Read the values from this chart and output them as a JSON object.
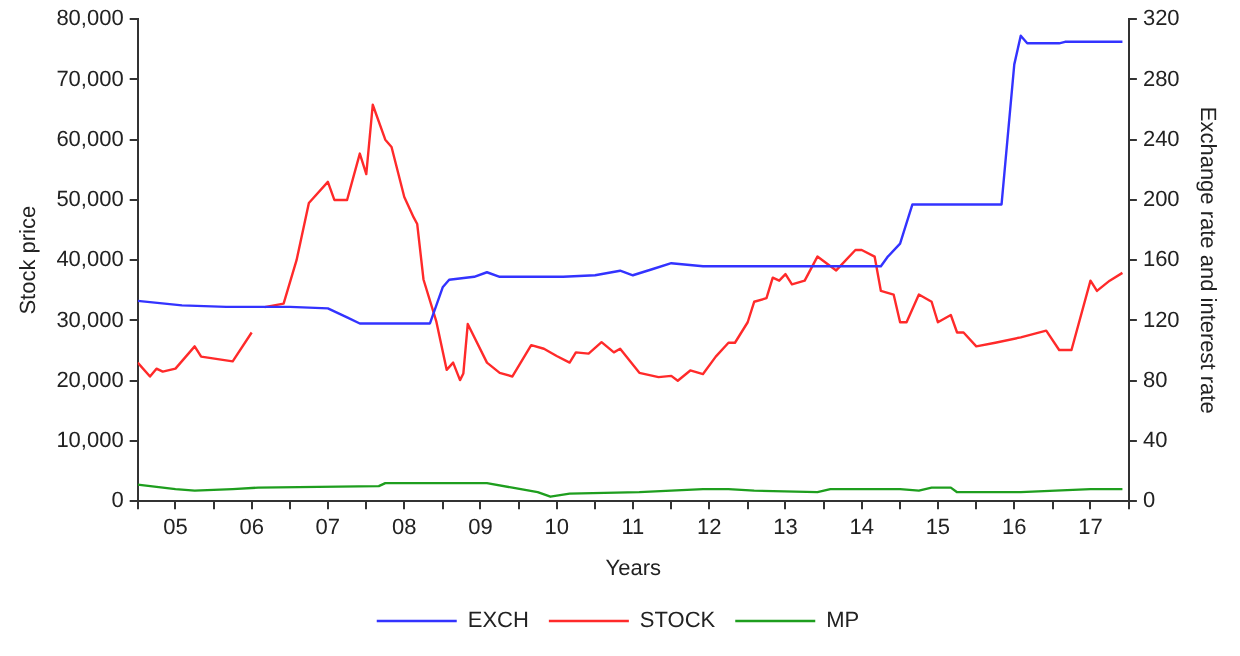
{
  "chart_data": {
    "type": "line",
    "xlabel": "Years",
    "ylabel": "Stock price",
    "y2label": "Exchange rate and interest rate",
    "xlim": [
      "2005",
      "2018"
    ],
    "xticks": [
      {
        "value": "2005",
        "label": null
      },
      {
        "value": "2005-07",
        "label": "05"
      },
      {
        "value": "2006",
        "label": null
      },
      {
        "value": "2006-07",
        "label": "06"
      },
      {
        "value": "2007",
        "label": null
      },
      {
        "value": "2007-07",
        "label": "07"
      },
      {
        "value": "2008",
        "label": null
      },
      {
        "value": "2008-07",
        "label": "08"
      },
      {
        "value": "2009",
        "label": null
      },
      {
        "value": "2009-07",
        "label": "09"
      },
      {
        "value": "2010",
        "label": null
      },
      {
        "value": "2010-07",
        "label": "10"
      },
      {
        "value": "2011",
        "label": null
      },
      {
        "value": "2011-07",
        "label": "11"
      },
      {
        "value": "2012",
        "label": null
      },
      {
        "value": "2012-07",
        "label": "12"
      },
      {
        "value": "2013",
        "label": null
      },
      {
        "value": "2013-07",
        "label": "13"
      },
      {
        "value": "2014",
        "label": null
      },
      {
        "value": "2014-07",
        "label": "14"
      },
      {
        "value": "2015",
        "label": null
      },
      {
        "value": "2015-07",
        "label": "15"
      },
      {
        "value": "2016",
        "label": null
      },
      {
        "value": "2016-07",
        "label": "16"
      },
      {
        "value": "2017",
        "label": null
      },
      {
        "value": "2017-07",
        "label": "17"
      },
      {
        "value": "2018",
        "label": null
      }
    ],
    "ylim": [
      0,
      80000
    ],
    "yticks": [
      {
        "value": 0,
        "label": "0"
      },
      {
        "value": 10000,
        "label": "10,000"
      },
      {
        "value": 20000,
        "label": "20,000"
      },
      {
        "value": 30000,
        "label": "30,000"
      },
      {
        "value": 40000,
        "label": "40,000"
      },
      {
        "value": 50000,
        "label": "50,000"
      },
      {
        "value": 60000,
        "label": "60,000"
      },
      {
        "value": 70000,
        "label": "70,000"
      },
      {
        "value": 80000,
        "label": "80,000"
      }
    ],
    "y2lim": [
      0,
      320
    ],
    "y2ticks": [
      0,
      40,
      80,
      120,
      160,
      200,
      240,
      280,
      320
    ],
    "grid": false,
    "legend": "bottom",
    "marker": "none",
    "line_style": "solid",
    "series": [
      {
        "name": "EXCH",
        "color": "#3333ff",
        "axis": "y2",
        "x": [
          "2005-01",
          "2005-08",
          "2006-03",
          "2007-01",
          "2007-07",
          "2007-10",
          "2007-12",
          "2008-11",
          "2009-01",
          "2009-02",
          "2009-06",
          "2009-08",
          "2009-10",
          "2010-08",
          "2011-01",
          "2011-05",
          "2011-07",
          "2011-10",
          "2012-01",
          "2012-06",
          "2014-10",
          "2014-11",
          "2015-01",
          "2015-03",
          "2016-05",
          "2016-07",
          "2016-08",
          "2016-09",
          "2017-02",
          "2017-03",
          "2017-12"
        ],
        "values": [
          133,
          130,
          129,
          129,
          128,
          122,
          118,
          118,
          142,
          147,
          149,
          152,
          149,
          149,
          150,
          153,
          150,
          154,
          158,
          156,
          156,
          162,
          171,
          197,
          197,
          290,
          309,
          304,
          304,
          305,
          305
        ]
      },
      {
        "name": "STOCK",
        "color": "#ff2a2a",
        "x": [
          "2005-01",
          "2005-03",
          "2005-04",
          "2005-05",
          "2005-07",
          "2005-10",
          "2005-11",
          "2006-04",
          "2006-07",
          "2006-08",
          "2006-09",
          "2006-12",
          "2007-02",
          "2007-04",
          "2007-07",
          "2007-08",
          "2007-10",
          "2007-12",
          "2008-01",
          "2008-02",
          "2008-04",
          "2008-05",
          "2008-07",
          "2008-08-15",
          "2008-09",
          "2008-10",
          "2008-12",
          "2009-01-20",
          "2009-02-20",
          "2009-03-25",
          "2009-04-10",
          "2009-05",
          "2009-08",
          "2009-10",
          "2009-12",
          "2010-03",
          "2010-05",
          "2010-07",
          "2010-09",
          "2010-10",
          "2010-12",
          "2011-02",
          "2011-04",
          "2011-05",
          "2011-08",
          "2011-11",
          "2012-01",
          "2012-02",
          "2012-04",
          "2012-06",
          "2012-08",
          "2012-10",
          "2012-11",
          "2013-01",
          "2013-02",
          "2013-04",
          "2013-05",
          "2013-06",
          "2013-07",
          "2013-08",
          "2013-10",
          "2013-12",
          "2014-03",
          "2014-06",
          "2014-07",
          "2014-09",
          "2014-10",
          "2014-12",
          "2015-01",
          "2015-02",
          "2015-04",
          "2015-06",
          "2015-07",
          "2015-09",
          "2015-10",
          "2015-11",
          "2016-01",
          "2016-04",
          "2016-08",
          "2016-12",
          "2017-02",
          "2017-04",
          "2017-07",
          "2017-08",
          "2017-10",
          "2017-12"
        ],
        "values": [
          23000,
          20700,
          22000,
          21500,
          22000,
          25700,
          24000,
          23200,
          28000,
          null,
          32200,
          32800,
          40000,
          49500,
          53000,
          50000,
          50000,
          57700,
          54300,
          65800,
          60000,
          58800,
          50500,
          47100,
          46000,
          36800,
          29900,
          21800,
          23000,
          20100,
          21200,
          29400,
          23000,
          21300,
          20700,
          25900,
          25300,
          24100,
          23000,
          24700,
          24500,
          26400,
          24700,
          25300,
          21300,
          20600,
          20800,
          20000,
          21700,
          21100,
          24000,
          26300,
          26300,
          29700,
          33100,
          33700,
          37100,
          36600,
          37700,
          36000,
          36600,
          40600,
          38300,
          41700,
          41700,
          40600,
          34900,
          34300,
          29700,
          29700,
          34300,
          33100,
          29700,
          30900,
          28000,
          28000,
          25700,
          26300,
          27200,
          28300,
          25100,
          25100,
          36600,
          34900,
          36600,
          37900
        ]
      },
      {
        "name": "MP",
        "color": "#1e9e1e",
        "axis": "y2",
        "x": [
          "2005-01",
          "2005-07",
          "2005-10",
          "2006-04",
          "2006-08",
          "2008-03",
          "2008-04",
          "2009-01",
          "2009-08",
          "2009-12",
          "2010-04",
          "2010-06",
          "2010-09",
          "2011-08",
          "2012-06",
          "2012-10",
          "2013-02",
          "2013-12",
          "2014-02",
          "2015-01",
          "2015-04",
          "2015-06",
          "2015-09",
          "2015-10",
          "2016-08",
          "2017-07",
          "2017-12"
        ],
        "values": [
          11,
          8,
          7,
          8,
          9,
          10,
          12,
          12,
          12,
          9,
          6,
          3,
          5,
          6,
          8,
          8,
          7,
          6,
          8,
          8,
          7,
          9,
          9,
          6,
          6,
          8,
          8
        ]
      }
    ]
  }
}
